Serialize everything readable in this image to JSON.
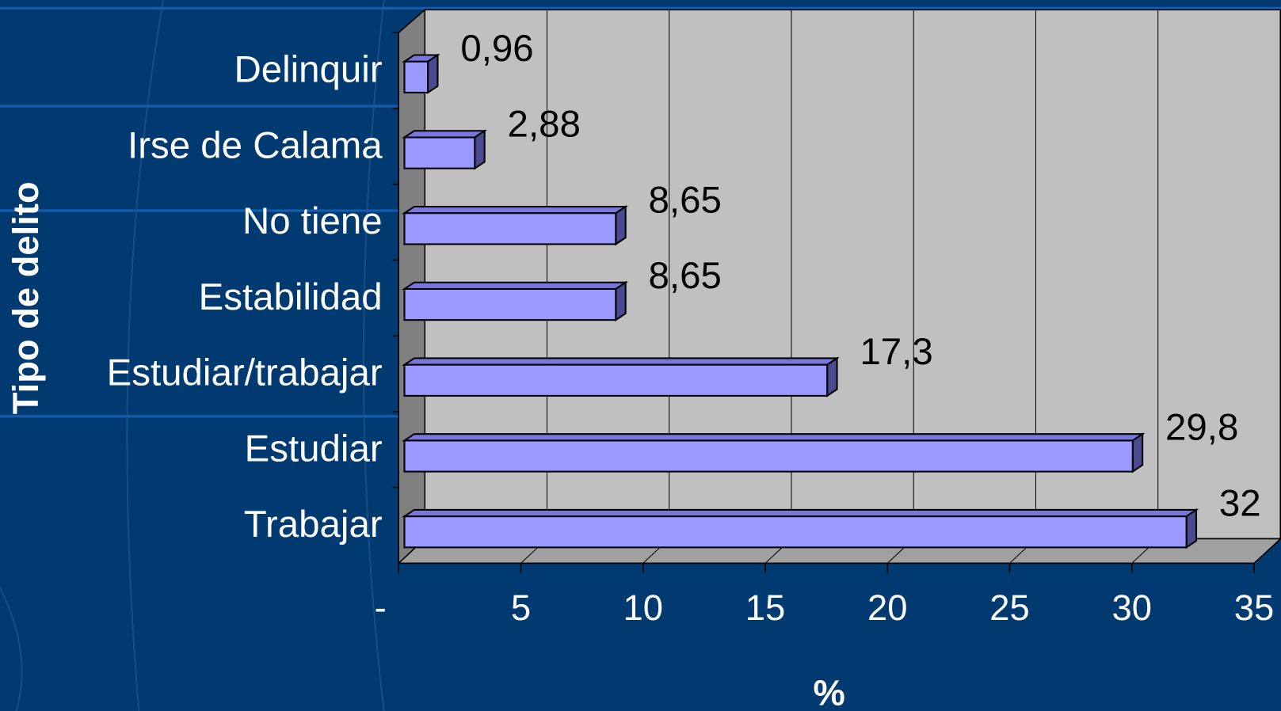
{
  "chart_data": {
    "type": "bar",
    "categories": [
      "Delinquir",
      "Irse de Calama",
      "No tiene",
      "Estabilidad",
      "Estudiar/trabajar",
      "Estudiar",
      "Trabajar"
    ],
    "values": [
      0.96,
      2.88,
      8.65,
      8.65,
      17.3,
      29.8,
      32
    ],
    "value_labels": [
      "0,96",
      "2,88",
      "8,65",
      "8,65",
      "17,3",
      "29,8",
      "32"
    ],
    "color": "#9999ff",
    "xlim": [
      0,
      35
    ],
    "xticks": [
      {
        "value": 0,
        "label": "-"
      },
      5,
      10,
      15,
      20,
      25,
      30,
      35
    ],
    "xlabel": "%",
    "ylabel": "Tipo de delito",
    "grid": true
  }
}
